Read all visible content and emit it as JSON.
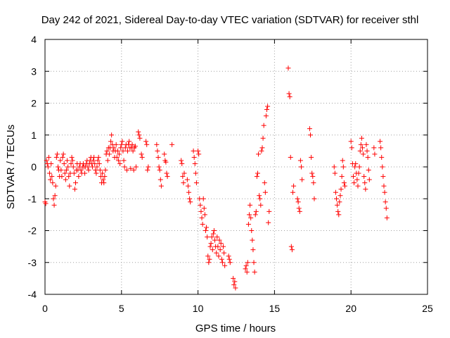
{
  "chart_data": {
    "type": "scatter",
    "title": "Day 242 of 2021, Sidereal Day-to-day VTEC variation (SDTVAR) for receiver sthl",
    "xlabel": "GPS time / hours",
    "ylabel": "SDTVAR / TECUs",
    "xlim": [
      0,
      25
    ],
    "ylim": [
      -4,
      4
    ],
    "x_ticks": [
      0,
      5,
      10,
      15,
      20,
      25
    ],
    "y_ticks": [
      -4,
      -3,
      -2,
      -1,
      0,
      1,
      2,
      3,
      4
    ],
    "x_tick_labels": [
      "0",
      "5",
      "10",
      "15",
      "20",
      "25"
    ],
    "y_tick_labels": [
      "-4",
      "-3",
      "-2",
      "-1",
      "0",
      "1",
      "2",
      "3",
      "4"
    ],
    "grid": true,
    "marker": "+",
    "series_color": "#ff0000",
    "series": [
      {
        "name": "SDTVAR",
        "points": [
          [
            0.0,
            -1.1
          ],
          [
            0.05,
            -1.15
          ],
          [
            0.1,
            0.2
          ],
          [
            0.15,
            0.1
          ],
          [
            0.2,
            0.0
          ],
          [
            0.25,
            0.3
          ],
          [
            0.3,
            -0.2
          ],
          [
            0.35,
            -0.4
          ],
          [
            0.4,
            0.1
          ],
          [
            0.45,
            -0.3
          ],
          [
            0.5,
            -0.5
          ],
          [
            0.55,
            -1.0
          ],
          [
            0.6,
            -1.2
          ],
          [
            0.65,
            -0.9
          ],
          [
            0.7,
            -0.6
          ],
          [
            0.75,
            0.3
          ],
          [
            0.8,
            0.4
          ],
          [
            0.85,
            0.0
          ],
          [
            0.9,
            -0.1
          ],
          [
            0.95,
            -0.3
          ],
          [
            1.0,
            0.2
          ],
          [
            1.05,
            -0.1
          ],
          [
            1.1,
            -0.3
          ],
          [
            1.15,
            0.3
          ],
          [
            1.2,
            0.4
          ],
          [
            1.25,
            0.1
          ],
          [
            1.3,
            -0.2
          ],
          [
            1.35,
            -0.4
          ],
          [
            1.4,
            -0.1
          ],
          [
            1.45,
            0.2
          ],
          [
            1.5,
            0.0
          ],
          [
            1.55,
            -0.3
          ],
          [
            1.6,
            -0.6
          ],
          [
            1.65,
            -0.2
          ],
          [
            1.7,
            0.1
          ],
          [
            1.75,
            0.3
          ],
          [
            1.8,
            0.2
          ],
          [
            1.85,
            0.0
          ],
          [
            1.9,
            -0.2
          ],
          [
            1.95,
            -0.7
          ],
          [
            2.0,
            -0.5
          ],
          [
            2.05,
            -0.1
          ],
          [
            2.1,
            0.1
          ],
          [
            2.15,
            -0.1
          ],
          [
            2.2,
            -0.3
          ],
          [
            2.25,
            0.0
          ],
          [
            2.3,
            0.1
          ],
          [
            2.35,
            -0.1
          ],
          [
            2.4,
            -0.2
          ],
          [
            2.45,
            0.0
          ],
          [
            2.5,
            0.1
          ],
          [
            2.55,
            0.0
          ],
          [
            2.6,
            -0.2
          ],
          [
            2.65,
            0.0
          ],
          [
            2.7,
            0.1
          ],
          [
            2.75,
            0.2
          ],
          [
            2.8,
            0.0
          ],
          [
            2.85,
            -0.1
          ],
          [
            2.9,
            0.1
          ],
          [
            2.95,
            0.2
          ],
          [
            3.0,
            0.3
          ],
          [
            3.05,
            0.1
          ],
          [
            3.1,
            0.0
          ],
          [
            3.15,
            0.2
          ],
          [
            3.2,
            0.3
          ],
          [
            3.25,
            0.1
          ],
          [
            3.3,
            -0.1
          ],
          [
            3.35,
            -0.2
          ],
          [
            3.4,
            0.0
          ],
          [
            3.45,
            0.2
          ],
          [
            3.5,
            0.3
          ],
          [
            3.55,
            0.1
          ],
          [
            3.6,
            -0.1
          ],
          [
            3.65,
            -0.3
          ],
          [
            3.7,
            -0.5
          ],
          [
            3.75,
            -0.2
          ],
          [
            3.8,
            -0.4
          ],
          [
            3.85,
            -0.5
          ],
          [
            3.9,
            -0.3
          ],
          [
            3.95,
            -0.1
          ],
          [
            4.0,
            0.4
          ],
          [
            4.05,
            0.5
          ],
          [
            4.1,
            0.2
          ],
          [
            4.15,
            0.6
          ],
          [
            4.2,
            0.4
          ],
          [
            4.25,
            0.6
          ],
          [
            4.3,
            0.8
          ],
          [
            4.35,
            1.0
          ],
          [
            4.4,
            0.7
          ],
          [
            4.45,
            0.5
          ],
          [
            4.5,
            0.6
          ],
          [
            4.55,
            0.3
          ],
          [
            4.6,
            0.5
          ],
          [
            4.65,
            0.7
          ],
          [
            4.7,
            0.3
          ],
          [
            4.75,
            0.5
          ],
          [
            4.8,
            0.2
          ],
          [
            4.85,
            0.4
          ],
          [
            4.9,
            0.1
          ],
          [
            4.95,
            0.6
          ],
          [
            5.0,
            0.7
          ],
          [
            5.05,
            0.8
          ],
          [
            5.1,
            0.5
          ],
          [
            5.15,
            0.2
          ],
          [
            5.2,
            0.0
          ],
          [
            5.25,
            0.6
          ],
          [
            5.3,
            0.7
          ],
          [
            5.35,
            -0.1
          ],
          [
            5.4,
            0.5
          ],
          [
            5.45,
            0.7
          ],
          [
            5.5,
            0.8
          ],
          [
            5.55,
            0.6
          ],
          [
            5.6,
            -0.05
          ],
          [
            5.65,
            0.6
          ],
          [
            5.7,
            0.7
          ],
          [
            5.75,
            0.5
          ],
          [
            5.8,
            -0.1
          ],
          [
            5.85,
            0.6
          ],
          [
            5.9,
            0.65
          ],
          [
            5.95,
            0.0
          ],
          [
            6.1,
            1.1
          ],
          [
            6.15,
            1.0
          ],
          [
            6.2,
            0.9
          ],
          [
            6.3,
            0.4
          ],
          [
            6.35,
            0.3
          ],
          [
            6.6,
            0.8
          ],
          [
            6.65,
            0.7
          ],
          [
            6.7,
            -0.1
          ],
          [
            6.75,
            0.0
          ],
          [
            7.3,
            0.7
          ],
          [
            7.35,
            0.5
          ],
          [
            7.4,
            0.3
          ],
          [
            7.45,
            0.0
          ],
          [
            7.5,
            -0.1
          ],
          [
            7.55,
            -0.4
          ],
          [
            7.6,
            -0.6
          ],
          [
            7.8,
            0.4
          ],
          [
            7.85,
            0.2
          ],
          [
            7.9,
            0.15
          ],
          [
            7.95,
            -0.2
          ],
          [
            8.0,
            -0.3
          ],
          [
            8.3,
            0.7
          ],
          [
            8.9,
            0.2
          ],
          [
            8.95,
            0.1
          ],
          [
            9.0,
            -0.3
          ],
          [
            9.05,
            -0.5
          ],
          [
            9.1,
            -0.2
          ],
          [
            9.3,
            -0.4
          ],
          [
            9.35,
            -0.6
          ],
          [
            9.4,
            -0.8
          ],
          [
            9.45,
            -1.0
          ],
          [
            9.5,
            -1.1
          ],
          [
            9.7,
            0.5
          ],
          [
            9.75,
            0.3
          ],
          [
            9.8,
            0.1
          ],
          [
            9.85,
            -0.2
          ],
          [
            9.9,
            -0.5
          ],
          [
            10.0,
            0.5
          ],
          [
            10.05,
            0.4
          ],
          [
            10.1,
            -1.0
          ],
          [
            10.15,
            -1.2
          ],
          [
            10.2,
            -1.4
          ],
          [
            10.25,
            -1.6
          ],
          [
            10.3,
            -1.8
          ],
          [
            10.35,
            -1.0
          ],
          [
            10.4,
            -1.3
          ],
          [
            10.45,
            -1.5
          ],
          [
            10.5,
            -2.0
          ],
          [
            10.55,
            -1.9
          ],
          [
            10.6,
            -2.2
          ],
          [
            10.65,
            -2.8
          ],
          [
            10.7,
            -3.0
          ],
          [
            10.75,
            -2.9
          ],
          [
            10.8,
            -2.5
          ],
          [
            10.85,
            -2.4
          ],
          [
            10.9,
            -2.2
          ],
          [
            10.95,
            -2.6
          ],
          [
            11.0,
            -2.1
          ],
          [
            11.05,
            -2.0
          ],
          [
            11.1,
            -2.3
          ],
          [
            11.15,
            -2.5
          ],
          [
            11.2,
            -2.7
          ],
          [
            11.25,
            -2.2
          ],
          [
            11.3,
            -2.5
          ],
          [
            11.35,
            -2.8
          ],
          [
            11.4,
            -2.3
          ],
          [
            11.45,
            -2.6
          ],
          [
            11.5,
            -2.4
          ],
          [
            11.55,
            -2.9
          ],
          [
            11.6,
            -3.0
          ],
          [
            11.65,
            -2.5
          ],
          [
            11.7,
            -2.7
          ],
          [
            11.75,
            -3.1
          ],
          [
            12.0,
            -2.8
          ],
          [
            12.05,
            -2.9
          ],
          [
            12.1,
            -3.0
          ],
          [
            12.3,
            -3.5
          ],
          [
            12.35,
            -3.7
          ],
          [
            12.4,
            -3.6
          ],
          [
            12.45,
            -3.8
          ],
          [
            13.1,
            -3.2
          ],
          [
            13.15,
            -3.1
          ],
          [
            13.2,
            -3.3
          ],
          [
            13.25,
            -3.0
          ],
          [
            13.3,
            -1.8
          ],
          [
            13.35,
            -1.5
          ],
          [
            13.4,
            -1.2
          ],
          [
            13.45,
            -1.6
          ],
          [
            13.5,
            -2.0
          ],
          [
            13.55,
            -2.3
          ],
          [
            13.6,
            -2.6
          ],
          [
            13.65,
            -3.0
          ],
          [
            13.7,
            -3.3
          ],
          [
            13.75,
            -1.5
          ],
          [
            13.8,
            -1.4
          ],
          [
            13.85,
            -0.3
          ],
          [
            13.9,
            -0.2
          ],
          [
            13.95,
            0.4
          ],
          [
            14.0,
            -0.9
          ],
          [
            14.05,
            -1.0
          ],
          [
            14.1,
            -1.2
          ],
          [
            14.15,
            0.5
          ],
          [
            14.2,
            0.6
          ],
          [
            14.25,
            0.9
          ],
          [
            14.3,
            1.3
          ],
          [
            14.35,
            -0.5
          ],
          [
            14.4,
            -0.8
          ],
          [
            14.45,
            1.6
          ],
          [
            14.5,
            1.8
          ],
          [
            14.55,
            1.9
          ],
          [
            14.6,
            -1.75
          ],
          [
            14.65,
            -1.4
          ],
          [
            15.9,
            3.1
          ],
          [
            15.95,
            2.3
          ],
          [
            16.0,
            2.2
          ],
          [
            16.05,
            0.3
          ],
          [
            16.1,
            -2.5
          ],
          [
            16.15,
            -2.6
          ],
          [
            16.2,
            -0.8
          ],
          [
            16.25,
            -0.6
          ],
          [
            16.5,
            -1.0
          ],
          [
            16.55,
            -1.1
          ],
          [
            16.6,
            -1.3
          ],
          [
            16.65,
            -1.4
          ],
          [
            16.7,
            0.2
          ],
          [
            16.75,
            0.0
          ],
          [
            16.8,
            -0.4
          ],
          [
            17.3,
            1.2
          ],
          [
            17.35,
            1.0
          ],
          [
            17.4,
            0.3
          ],
          [
            17.45,
            -0.2
          ],
          [
            17.5,
            -0.3
          ],
          [
            17.55,
            -0.5
          ],
          [
            17.6,
            -1.0
          ],
          [
            18.9,
            0.0
          ],
          [
            18.95,
            -0.2
          ],
          [
            19.0,
            -0.8
          ],
          [
            19.05,
            -1.0
          ],
          [
            19.1,
            -1.2
          ],
          [
            19.15,
            -1.4
          ],
          [
            19.2,
            -1.5
          ],
          [
            19.25,
            -1.1
          ],
          [
            19.3,
            -0.9
          ],
          [
            19.35,
            -0.7
          ],
          [
            19.4,
            -0.3
          ],
          [
            19.45,
            0.2
          ],
          [
            19.5,
            0.0
          ],
          [
            19.55,
            -0.5
          ],
          [
            19.6,
            -0.6
          ],
          [
            20.0,
            0.8
          ],
          [
            20.05,
            0.6
          ],
          [
            20.1,
            0.1
          ],
          [
            20.15,
            -0.3
          ],
          [
            20.2,
            -0.5
          ],
          [
            20.25,
            0.0
          ],
          [
            20.3,
            0.1
          ],
          [
            20.35,
            -0.2
          ],
          [
            20.4,
            -0.4
          ],
          [
            20.45,
            -0.6
          ],
          [
            20.5,
            -0.2
          ],
          [
            20.55,
            0.0
          ],
          [
            20.6,
            0.5
          ],
          [
            20.65,
            0.7
          ],
          [
            20.7,
            0.9
          ],
          [
            20.75,
            0.6
          ],
          [
            20.8,
            0.4
          ],
          [
            20.85,
            -0.3
          ],
          [
            20.9,
            -0.5
          ],
          [
            20.95,
            -0.7
          ],
          [
            21.0,
            0.7
          ],
          [
            21.05,
            0.5
          ],
          [
            21.1,
            0.3
          ],
          [
            21.15,
            -0.1
          ],
          [
            21.2,
            -0.4
          ],
          [
            21.5,
            0.6
          ],
          [
            21.55,
            0.4
          ],
          [
            21.9,
            0.8
          ],
          [
            21.95,
            0.6
          ],
          [
            22.0,
            0.3
          ],
          [
            22.05,
            0.0
          ],
          [
            22.1,
            -0.3
          ],
          [
            22.15,
            -0.6
          ],
          [
            22.2,
            -0.8
          ],
          [
            22.25,
            -1.1
          ],
          [
            22.3,
            -1.3
          ],
          [
            22.35,
            -1.6
          ]
        ]
      }
    ]
  }
}
